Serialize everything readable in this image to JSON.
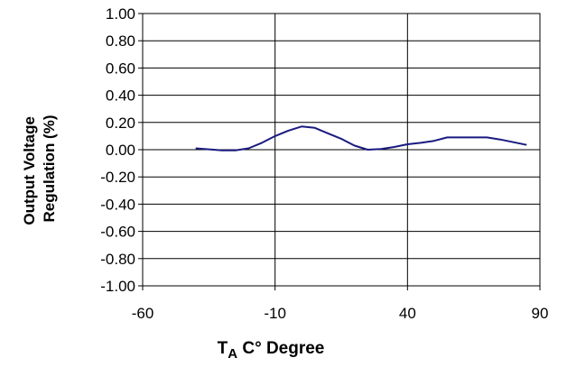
{
  "chart_data": {
    "type": "line",
    "title": "",
    "xlabel": {
      "main": "T",
      "sub": "A",
      "rest": " C° Degree"
    },
    "ylabel": [
      "Output Voltage",
      "Regulation (%)"
    ],
    "xlim": [
      -60,
      90
    ],
    "ylim": [
      -1.0,
      1.0
    ],
    "x_ticks": [
      -60,
      -10,
      40,
      90
    ],
    "y_ticks": [
      1.0,
      0.8,
      0.6,
      0.4,
      0.2,
      0.0,
      -0.2,
      -0.4,
      -0.6,
      -0.8,
      -1.0
    ],
    "x_tick_labels": [
      "-60",
      "-10",
      "40",
      "90"
    ],
    "y_tick_labels": [
      "1.00",
      "0.80",
      "0.60",
      "0.40",
      "0.20",
      "0.00",
      "-0.20",
      "-0.40",
      "-0.60",
      "-0.80",
      "-1.00"
    ],
    "grid": true,
    "series": [
      {
        "color": "#1a1a80",
        "x": [
          -40,
          -30,
          -25,
          -20,
          -15,
          -10,
          -5,
          0,
          5,
          10,
          15,
          20,
          25,
          30,
          35,
          40,
          45,
          50,
          55,
          60,
          65,
          70,
          75,
          80,
          85
        ],
        "y": [
          0.01,
          -0.005,
          -0.005,
          0.01,
          0.05,
          0.1,
          0.14,
          0.17,
          0.16,
          0.12,
          0.08,
          0.03,
          0.0,
          0.005,
          0.02,
          0.04,
          0.05,
          0.065,
          0.09,
          0.09,
          0.09,
          0.09,
          0.075,
          0.055,
          0.035
        ]
      }
    ]
  }
}
